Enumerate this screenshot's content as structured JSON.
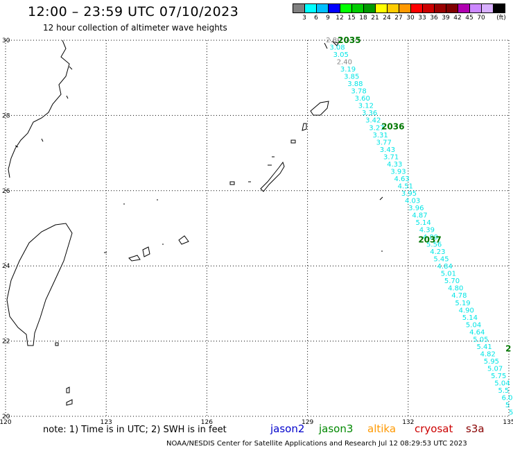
{
  "header": {
    "title": "12:00 – 23:59 UTC 07/10/2023",
    "subtitle": "12 hour collection of altimeter wave heights"
  },
  "colorbar": {
    "colors": [
      "#808080",
      "#00ffff",
      "#00bfff",
      "#0000ff",
      "#00ff00",
      "#00cc00",
      "#009900",
      "#ffff00",
      "#ffcc00",
      "#ff9900",
      "#ff0000",
      "#cc0000",
      "#990000",
      "#800000",
      "#b000b0",
      "#cc88ff",
      "#d8b0ff",
      "#000000"
    ],
    "labels": [
      "3",
      "6",
      "9",
      "12",
      "15",
      "18",
      "21",
      "24",
      "27",
      "30",
      "33",
      "36",
      "39",
      "42",
      "45",
      "70"
    ],
    "unit": "(ft)"
  },
  "map": {
    "lat_labels": [
      "30",
      "28",
      "26",
      "24",
      "22",
      "20"
    ],
    "lon_labels": [
      "120",
      "123",
      "126",
      "129",
      "132",
      "135"
    ],
    "time_labels": [
      {
        "text": "2035",
        "lon": 129.9,
        "lat": 30.0
      },
      {
        "text": "2036",
        "lon": 131.2,
        "lat": 27.7
      },
      {
        "text": "2037",
        "lon": 132.3,
        "lat": 24.7
      },
      {
        "text": "2",
        "lon": 134.9,
        "lat": 21.8
      }
    ],
    "track_start": {
      "lon": 129.55,
      "lat": 30.0
    },
    "track_end": {
      "lon": 135.0,
      "lat": 20.1
    },
    "swh_values": [
      "2.80",
      "3.08",
      "3.05",
      "2.40",
      "3.19",
      "3.85",
      "3.88",
      "3.78",
      "3.60",
      "3.12",
      "3.36",
      "3.42",
      "3.27",
      "3.31",
      "3.77",
      "3.43",
      "3.71",
      "4.33",
      "3.93",
      "4.63",
      "4.51",
      "3.95",
      "4.03",
      "3.96",
      "4.87",
      "5.14",
      "4.39",
      "4.89",
      "5.56",
      "4.23",
      "5.45",
      "4.84",
      "5.01",
      "5.70",
      "4.80",
      "4.78",
      "5.19",
      "4.90",
      "5.14",
      "5.04",
      "4.64",
      "5.05",
      "5.41",
      "4.82",
      "5.95",
      "5.07",
      "5.75",
      "5.04",
      "5.5",
      "6.0",
      "5",
      "5"
    ],
    "gray_indices": [
      0,
      3
    ]
  },
  "footer": {
    "note": "note: 1) Time is in UTC; 2) SWH is in feet",
    "satellites": [
      {
        "name": "jason2",
        "color": "#0000cc"
      },
      {
        "name": "jason3",
        "color": "#008800"
      },
      {
        "name": "altika",
        "color": "#ff9900"
      },
      {
        "name": "cryosat",
        "color": "#cc0000"
      },
      {
        "name": "s3a",
        "color": "#880000"
      }
    ],
    "credit": "NOAA/NESDIS Center for Satellite Applications and Research    Jul 12 08:29:53 UTC 2023"
  }
}
